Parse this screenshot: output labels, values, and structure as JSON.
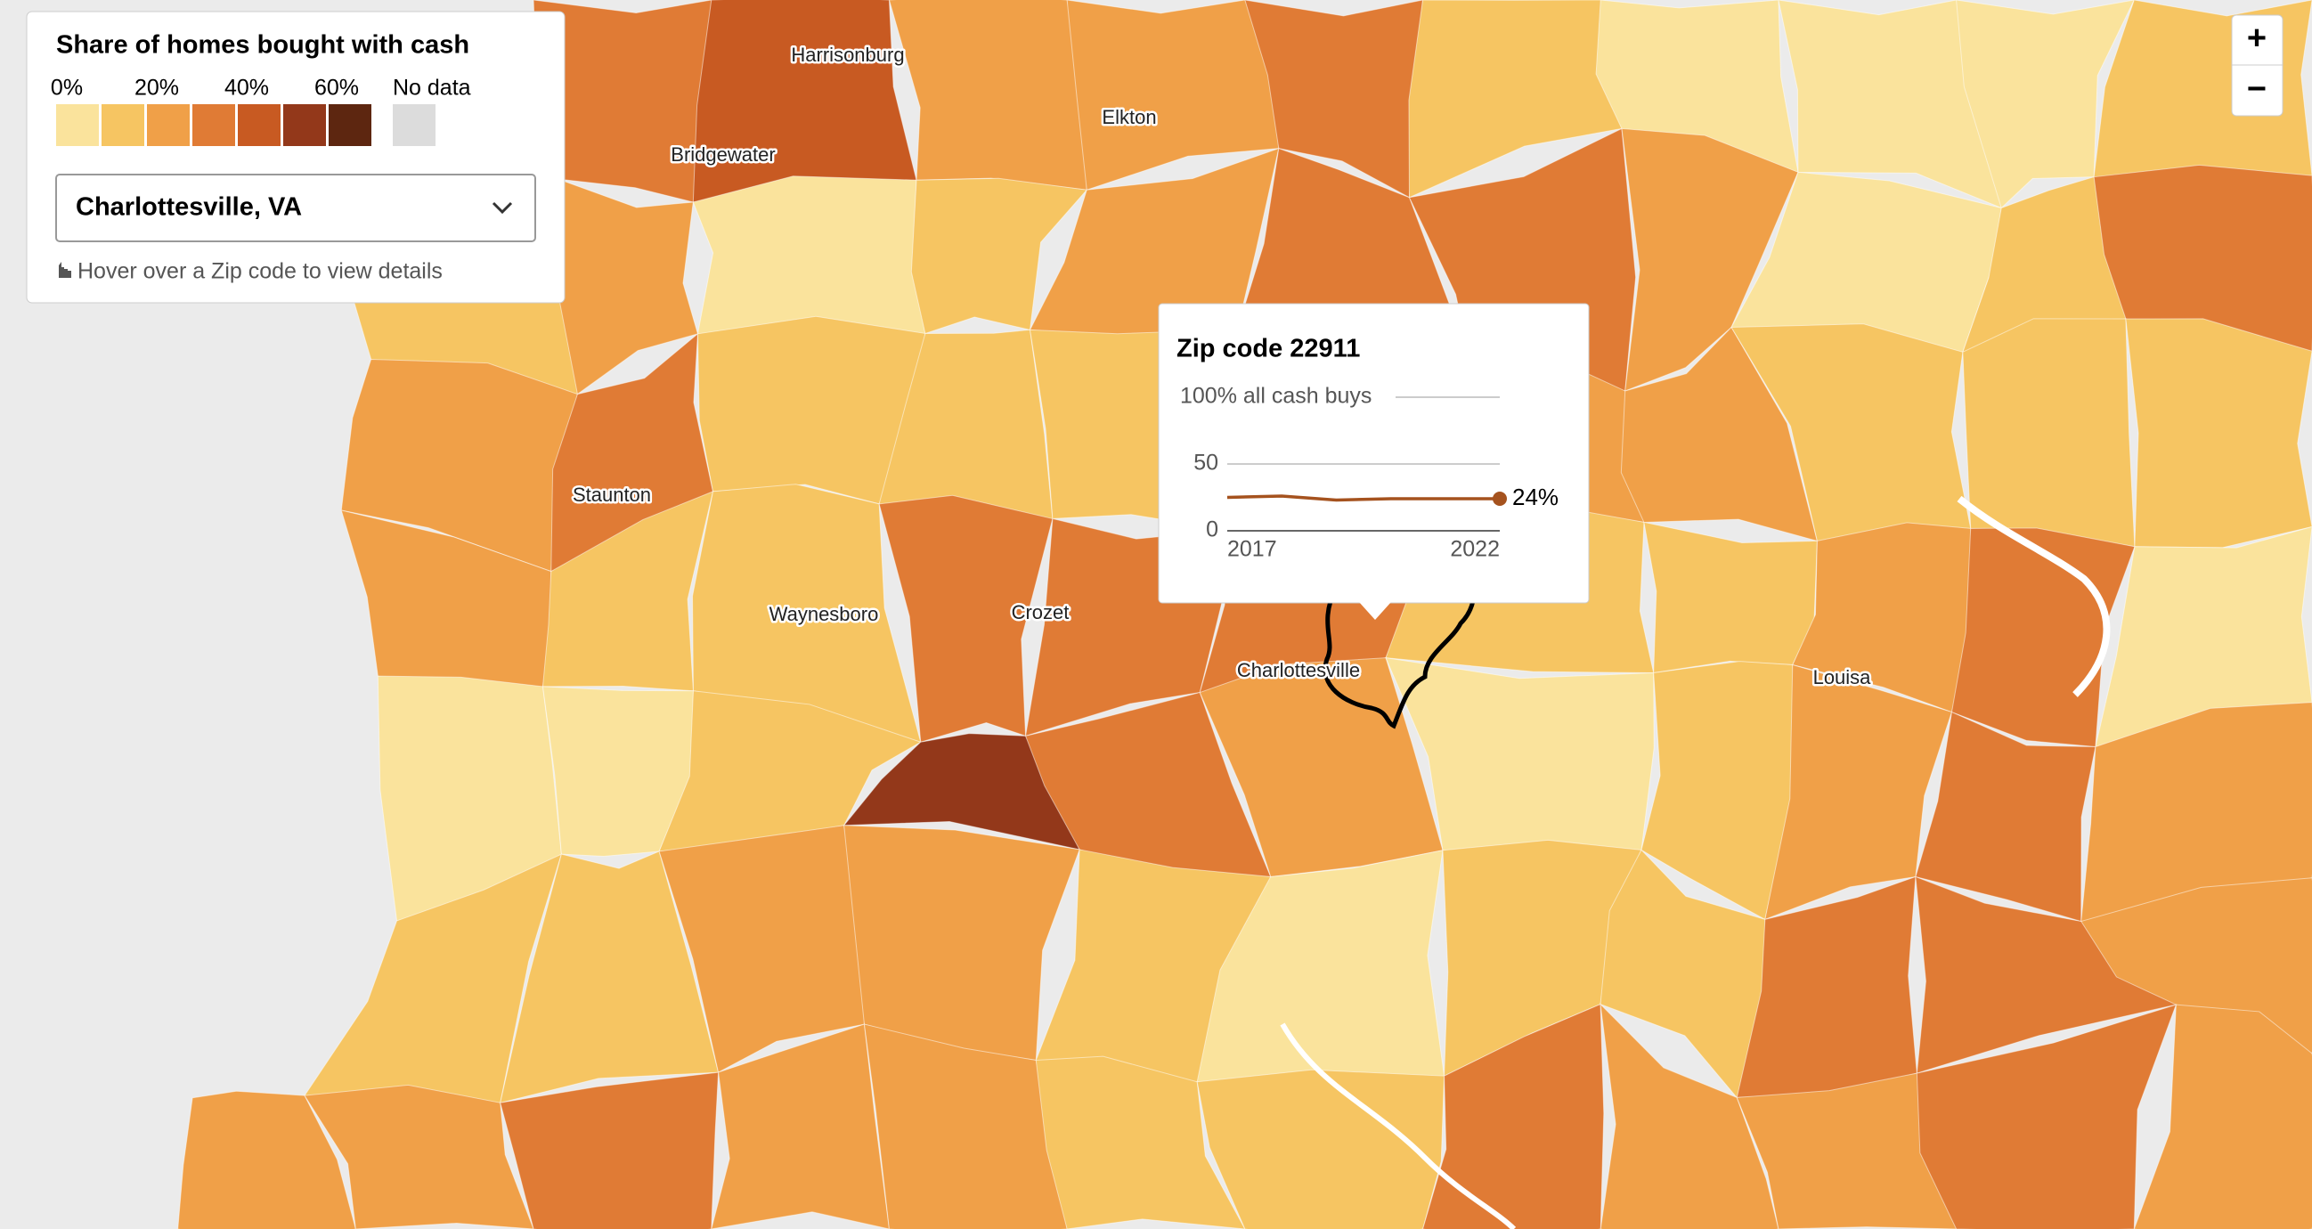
{
  "legend": {
    "title": "Share of homes bought with cash",
    "labels": [
      "0%",
      "20%",
      "40%",
      "60%"
    ],
    "colors": [
      "#fae39c",
      "#f6c562",
      "#f0a048",
      "#e07b35",
      "#c85a22",
      "#93381a",
      "#5d2610"
    ],
    "no_data": "No data",
    "no_data_color": "#dcdcdc"
  },
  "dropdown": "Charlottesville, VA",
  "hint": "Hover over a Zip code to view details",
  "zoom": {
    "in": "+",
    "out": "−"
  },
  "places": [
    "Harrisonburg",
    "Elkton",
    "Bridgewater",
    "Staunton",
    "Waynesboro",
    "Crozet",
    "Charlottesville",
    "Louisa"
  ],
  "chart_data": {
    "type": "line",
    "title": "Zip code 22911",
    "x": [
      2017,
      2018,
      2019,
      2020,
      2021,
      2022
    ],
    "series": [
      {
        "color": "#a5521e",
        "values": [
          25,
          26,
          23,
          24,
          24,
          24
        ],
        "value_labels": [
          null,
          null,
          null,
          null,
          null,
          "24%"
        ]
      }
    ],
    "xlim": [
      2017,
      2022
    ],
    "xticks": [
      2017,
      2022
    ],
    "ylim": [
      0,
      100
    ],
    "yticks": [
      0,
      50,
      {
        "value": 100,
        "label": "100% all cash buys"
      }
    ]
  }
}
